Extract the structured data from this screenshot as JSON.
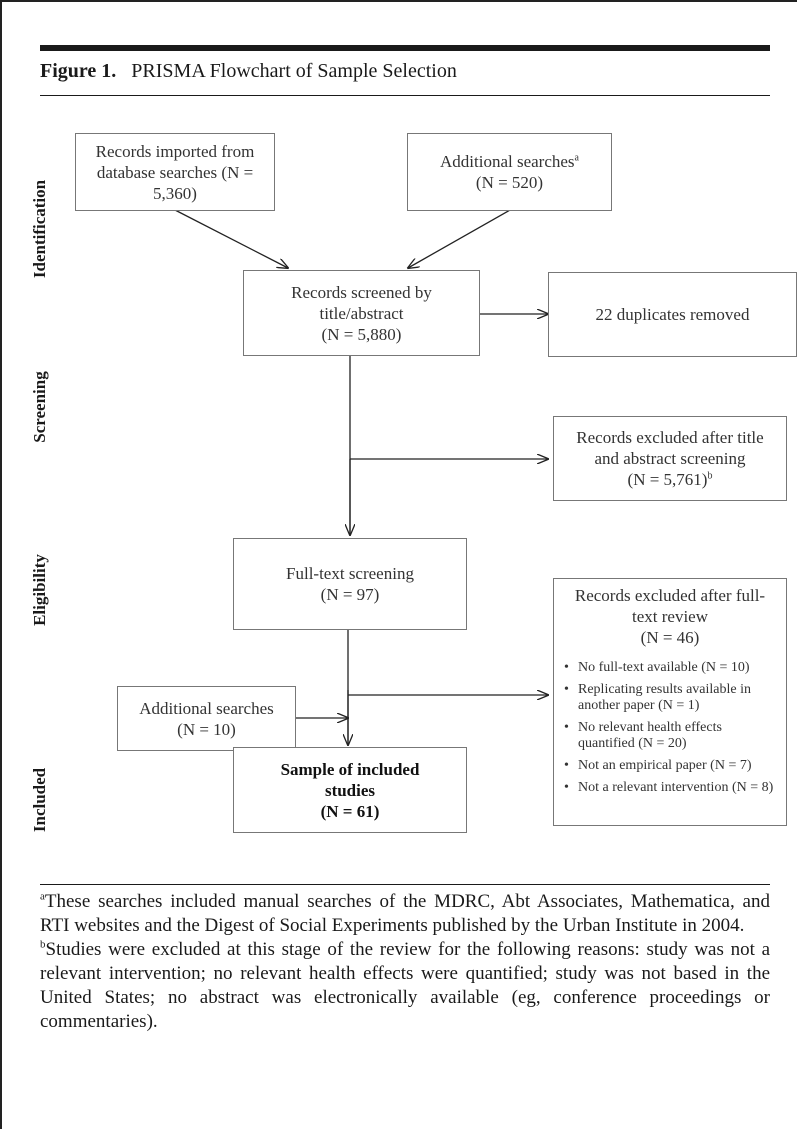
{
  "figure": {
    "label": "Figure 1.",
    "title": "PRISMA Flowchart of Sample Selection"
  },
  "phases": {
    "identification": "Identification",
    "screening": "Screening",
    "eligibility": "Eligibility",
    "included": "Included"
  },
  "boxes": {
    "imported": {
      "line1": "Records imported from",
      "line2": "database searches (N = 5,360)"
    },
    "additional_top": {
      "line1": "Additional searches",
      "sup": "a",
      "line2": "(N = 520)"
    },
    "screened": {
      "line1": "Records screened by",
      "line2": "title/abstract",
      "line3": "(N = 5,880)"
    },
    "duplicates": {
      "line1": "22 duplicates removed"
    },
    "excluded_title": {
      "line1": "Records excluded after title",
      "line2": "and abstract screening",
      "line3": "(N = 5,761)",
      "sup": "b"
    },
    "fulltext": {
      "line1": "Full-text screening",
      "line2": "(N = 97)"
    },
    "excluded_full": {
      "line1": "Records excluded after full-",
      "line2": "text review",
      "line3": "(N = 46)",
      "reasons": [
        "No full-text available (N = 10)",
        "Replicating results available in another paper (N = 1)",
        "No relevant health effects quantified (N = 20)",
        "Not an empirical paper (N = 7)",
        "Not a relevant intervention (N = 8)"
      ]
    },
    "additional_bottom": {
      "line1": "Additional searches",
      "line2": "(N = 10)"
    },
    "included": {
      "line1": "Sample of included",
      "line2": "studies",
      "line3": "(N = 61)"
    }
  },
  "footnotes": {
    "a": {
      "marker": "a",
      "text": "These searches included manual searches of the MDRC, Abt Associates, Mathematica, and RTI websites and the Digest of Social Experiments published by the Urban Institute in 2004."
    },
    "b": {
      "marker": "b",
      "text": "Studies were excluded at this stage of the review for the following reasons: study was not a relevant intervention; no relevant health effects were quantified; study was not based in the United States; no abstract was electronically available (eg, conference proceedings or commentaries)."
    }
  }
}
